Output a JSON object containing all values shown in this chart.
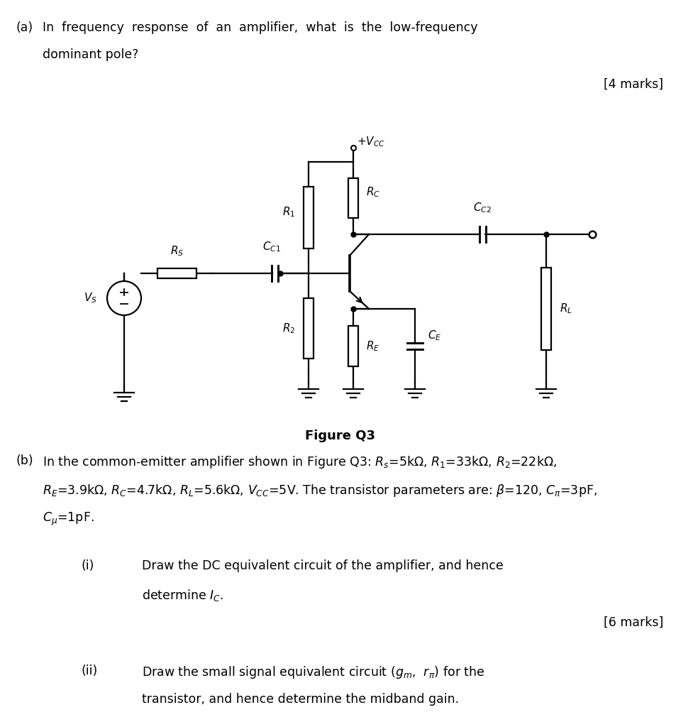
{
  "bg_color": "#ffffff",
  "fig_width": 9.77,
  "fig_height": 10.24,
  "figure_caption": "Figure Q3",
  "vcc_label": "+VCC",
  "vs_label": "Vs",
  "rs_label": "Rs",
  "r1_label": "R1",
  "r2_label": "R2",
  "rc_label": "RC",
  "re_label": "RE",
  "rl_label": "RL",
  "cc1_label": "CC1",
  "cc2_label": "CC2",
  "ce_label": "CE",
  "lw": 1.6,
  "circuit_scale": 1.0
}
